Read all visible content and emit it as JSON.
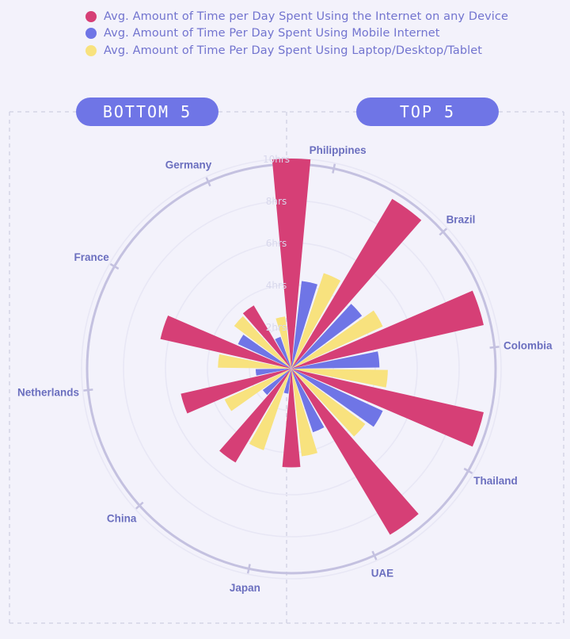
{
  "legend": [
    {
      "label": "Avg. Amount of Time per Day Spent Using the Internet on any Device",
      "color": "#d63f76"
    },
    {
      "label": "Avg. Amount of Time Per Day Spent Using Mobile Internet",
      "color": "#6f75e6"
    },
    {
      "label": "Avg. Amount of Time Per Day Spent Using Laptop/Desktop/Tablet",
      "color": "#f8e27e"
    }
  ],
  "groups": {
    "bottom_label": "BOTTOM 5",
    "top_label": "TOP 5"
  },
  "chart_data": {
    "type": "polar-bar",
    "title": "",
    "unit": "hrs",
    "r_max": 10,
    "ticks": [
      {
        "value": 2,
        "label": "2hrs"
      },
      {
        "value": 4,
        "label": "4hrs"
      },
      {
        "value": 6,
        "label": "6hrs"
      },
      {
        "value": 8,
        "label": "8hrs"
      },
      {
        "value": 10,
        "label": "10hrs"
      }
    ],
    "countries": [
      "Philippines",
      "Brazil",
      "Colombia",
      "Thailand",
      "UAE",
      "Japan",
      "China",
      "Netherlands",
      "France",
      "Germany"
    ],
    "series": [
      {
        "name": "Avg. Amount of Time per Day Spent Using the Internet on any Device",
        "color": "#d63f76",
        "values": [
          10.0,
          9.4,
          9.4,
          9.4,
          9.2,
          4.7,
          5.2,
          5.4,
          6.4,
          3.5
        ]
      },
      {
        "name": "Avg. Amount of Time Per Day Spent Using Mobile Internet",
        "color": "#6f75e6",
        "values": [
          4.2,
          4.2,
          4.2,
          4.8,
          3.2,
          1.2,
          1.7,
          1.7,
          2.8,
          1.6
        ]
      },
      {
        "name": "Avg. Amount of Time Per Day Spent Using Laptop/Desktop/Tablet",
        "color": "#f8e27e",
        "values": [
          4.8,
          4.8,
          4.6,
          4.4,
          4.2,
          4.1,
          3.5,
          3.5,
          3.4,
          2.5
        ]
      }
    ]
  }
}
